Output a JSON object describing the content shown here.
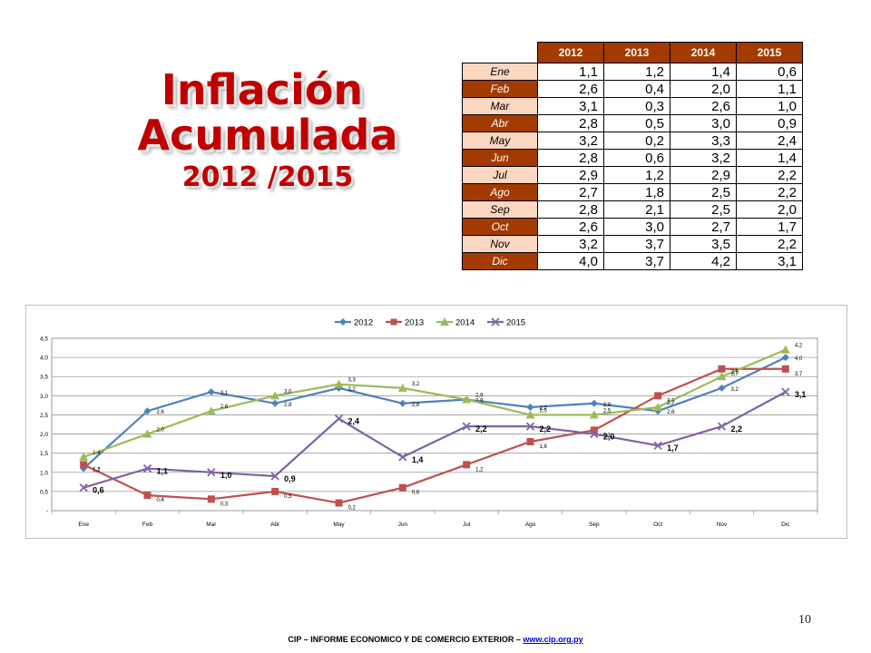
{
  "title": {
    "line1": "Inflación",
    "line2": "Acumulada",
    "line3": "2012 /2015"
  },
  "table": {
    "headers": [
      "2012",
      "2013",
      "2014",
      "2015"
    ],
    "rows": [
      {
        "month": "Ene",
        "values": [
          "1,1",
          "1,2",
          "1,4",
          "0,6"
        ]
      },
      {
        "month": "Feb",
        "values": [
          "2,6",
          "0,4",
          "2,0",
          "1,1"
        ]
      },
      {
        "month": "Mar",
        "values": [
          "3,1",
          "0,3",
          "2,6",
          "1,0"
        ]
      },
      {
        "month": "Abr",
        "values": [
          "2,8",
          "0,5",
          "3,0",
          "0,9"
        ]
      },
      {
        "month": "May",
        "values": [
          "3,2",
          "0,2",
          "3,3",
          "2,4"
        ]
      },
      {
        "month": "Jun",
        "values": [
          "2,8",
          "0,6",
          "3,2",
          "1,4"
        ]
      },
      {
        "month": "Jul",
        "values": [
          "2,9",
          "1,2",
          "2,9",
          "2,2"
        ]
      },
      {
        "month": "Ago",
        "values": [
          "2,7",
          "1,8",
          "2,5",
          "2,2"
        ]
      },
      {
        "month": "Sep",
        "values": [
          "2,8",
          "2,1",
          "2,5",
          "2,0"
        ]
      },
      {
        "month": "Oct",
        "values": [
          "2,6",
          "3,0",
          "2,7",
          "1,7"
        ]
      },
      {
        "month": "Nov",
        "values": [
          "3,2",
          "3,7",
          "3,5",
          "2,2"
        ]
      },
      {
        "month": "Dic",
        "values": [
          "4,0",
          "3,7",
          "4,2",
          "3,1"
        ]
      }
    ],
    "colors": {
      "header_bg": "#a33a00",
      "odd_bg": "#fbd6c1",
      "even_bg": "#a33a00"
    }
  },
  "chart_data": {
    "type": "line",
    "categories": [
      "Ene",
      "Feb",
      "Mar",
      "Abr",
      "May",
      "Jun",
      "Jul",
      "Ago",
      "Sep",
      "Oct",
      "Nov",
      "Dic"
    ],
    "series": [
      {
        "name": "2012",
        "color": "#4f81bd",
        "marker": "diamond",
        "values": [
          1.1,
          2.6,
          3.1,
          2.8,
          3.2,
          2.8,
          2.9,
          2.7,
          2.8,
          2.6,
          3.2,
          4.0
        ]
      },
      {
        "name": "2013",
        "color": "#c0504d",
        "marker": "square",
        "values": [
          1.2,
          0.4,
          0.3,
          0.5,
          0.2,
          0.6,
          1.2,
          1.8,
          2.1,
          3.0,
          3.7,
          3.7
        ]
      },
      {
        "name": "2014",
        "color": "#9bbb59",
        "marker": "triangle",
        "values": [
          1.4,
          2.0,
          2.6,
          3.0,
          3.3,
          3.2,
          2.9,
          2.5,
          2.5,
          2.7,
          3.5,
          4.2
        ]
      },
      {
        "name": "2015",
        "color": "#8064a2",
        "marker": "x",
        "values": [
          0.6,
          1.1,
          1.0,
          0.9,
          2.4,
          1.4,
          2.2,
          2.2,
          2.0,
          1.7,
          2.2,
          3.1
        ]
      }
    ],
    "y_ticks": [
      "-",
      "0,5",
      "1,0",
      "1,5",
      "2,0",
      "2,5",
      "3,0",
      "3,5",
      "4,0",
      "4,5"
    ],
    "ylim": [
      0,
      4.5
    ],
    "grid": true,
    "legend": "top"
  },
  "page_number": "10",
  "footer": {
    "text": "CIP – INFORME ECONOMICO Y DE COMERCIO EXTERIOR – ",
    "link": "www.cip.org.py"
  }
}
